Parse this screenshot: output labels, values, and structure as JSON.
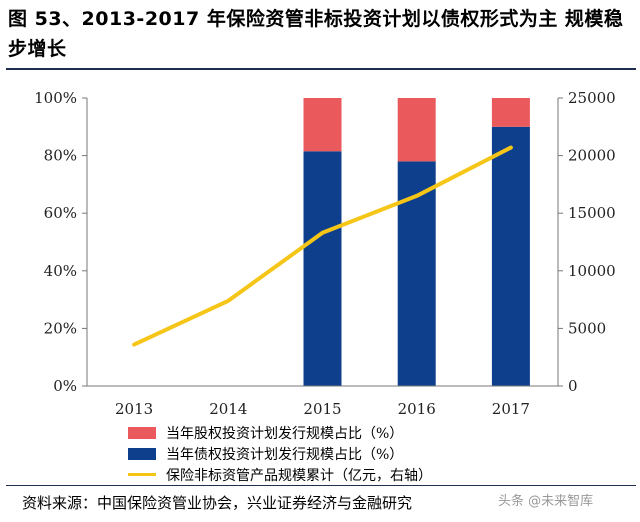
{
  "title": "图 53、2013-2017 年保险资管非标投资计划以债权形式为主  规模稳步增长",
  "source": "资料来源：中国保险资管业协会，兴业证券经济与金融研究",
  "watermark": "头条 @未来智库",
  "colors": {
    "equity": "#ea5a5d",
    "debt": "#0e3f8c",
    "line": "#f5c518",
    "axis": "#777777"
  },
  "chart_data": {
    "type": "bar",
    "categories": [
      "2013",
      "2014",
      "2015",
      "2016",
      "2017"
    ],
    "series": [
      {
        "name": "当年债权投资计划发行规模占比（%）",
        "kind": "bar",
        "axis": "left",
        "values": [
          null,
          null,
          81.5,
          78,
          90
        ],
        "color": "#0e3f8c"
      },
      {
        "name": "当年股权投资计划发行规模占比（%）",
        "kind": "bar",
        "axis": "left",
        "values": [
          null,
          null,
          18.5,
          22,
          10
        ],
        "color": "#ea5a5d"
      },
      {
        "name": "保险非标资管产品规模累计（亿元，右轴）",
        "kind": "line",
        "axis": "right",
        "values": [
          3600,
          7400,
          13300,
          16500,
          20700
        ],
        "color": "#f5c518"
      }
    ],
    "left_axis": {
      "ticks": [
        "0%",
        "20%",
        "40%",
        "60%",
        "80%",
        "100%"
      ],
      "ylim": [
        0,
        100
      ]
    },
    "right_axis": {
      "ticks": [
        "0",
        "5000",
        "10000",
        "15000",
        "20000",
        "25000"
      ],
      "ylim": [
        0,
        25000
      ]
    },
    "legend_placement": "bottom-center",
    "grid": false
  }
}
